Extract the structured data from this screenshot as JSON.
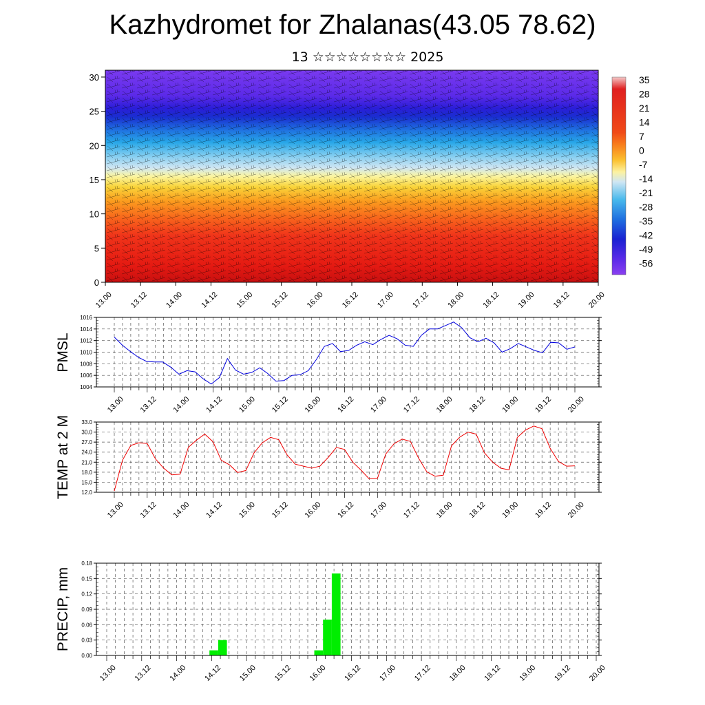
{
  "title": "Kazhydromet for Zhalanas(43.05 78.62)",
  "subtitle": "13 ☆☆☆☆☆☆☆☆ 2025",
  "colors": {
    "pmsl": "#0000dd",
    "temp": "#ee0000",
    "precip": "#00ee00",
    "grid": "#555555"
  },
  "chart_data": [
    {
      "type": "heatmap",
      "title": "",
      "x_ticks": [
        "13.00",
        "13.12",
        "14.00",
        "14.12",
        "15.00",
        "15.12",
        "16.00",
        "16.12",
        "17.00",
        "17.12",
        "18.00",
        "18.12",
        "19.00",
        "19.12",
        "20.00"
      ],
      "y_ticks": [
        "0",
        "5",
        "10",
        "15",
        "20",
        "25",
        "30"
      ],
      "ylim": [
        0,
        31
      ],
      "colorbar_labels": [
        "35",
        "28",
        "21",
        "14",
        "7",
        "0",
        "-7",
        "-14",
        "-21",
        "-28",
        "-35",
        "-42",
        "-49",
        "-56"
      ],
      "overlay": "wind barbs"
    },
    {
      "type": "line",
      "ylabel": "PMSL",
      "x_ticks": [
        "13.00",
        "13.12",
        "14.00",
        "14.12",
        "15.00",
        "15.12",
        "16.00",
        "16.12",
        "17.00",
        "17.12",
        "18.00",
        "18.12",
        "19.00",
        "19.12",
        "20.00"
      ],
      "y_ticks": [
        "1016",
        "1014",
        "1012",
        "1010",
        "1008",
        "1006",
        "1004"
      ],
      "ylim": [
        1004,
        1016
      ],
      "values": [
        1012.6,
        1011.2,
        1010.1,
        1009.1,
        1008.4,
        1008.3,
        1008.3,
        1007.4,
        1006.2,
        1006.8,
        1006.6,
        1005.4,
        1004.5,
        1005.6,
        1008.9,
        1006.9,
        1006.2,
        1006.5,
        1007.3,
        1006.3,
        1005.0,
        1005.1,
        1006.0,
        1006.1,
        1006.8,
        1008.7,
        1011.0,
        1011.5,
        1010.1,
        1010.3,
        1011.2,
        1011.8,
        1011.3,
        1012.2,
        1012.9,
        1012.3,
        1011.2,
        1011.0,
        1012.9,
        1014.0,
        1014.0,
        1014.6,
        1015.2,
        1014.2,
        1012.5,
        1011.8,
        1012.4,
        1011.6,
        1010.0,
        1010.6,
        1011.5,
        1010.9,
        1010.3,
        1009.9,
        1011.7,
        1011.6,
        1010.5,
        1010.9
      ]
    },
    {
      "type": "line",
      "ylabel": "TEMP at 2 M",
      "x_ticks": [
        "13.00",
        "13.12",
        "14.00",
        "14.12",
        "15.00",
        "15.12",
        "16.00",
        "16.12",
        "17.00",
        "17.12",
        "18.00",
        "18.12",
        "19.00",
        "19.12",
        "20.00"
      ],
      "y_ticks": [
        "33.0",
        "30.0",
        "27.0",
        "24.0",
        "21.0",
        "18.0",
        "15.0",
        "12.0"
      ],
      "ylim": [
        12,
        33
      ],
      "values": [
        12.4,
        21.6,
        26.0,
        26.8,
        26.6,
        22.0,
        19.2,
        17.2,
        17.4,
        25.4,
        27.6,
        29.4,
        27.1,
        21.6,
        20.2,
        17.9,
        18.5,
        23.8,
        26.8,
        28.4,
        27.7,
        23.2,
        20.4,
        19.8,
        19.2,
        19.8,
        22.4,
        25.4,
        24.8,
        21.0,
        18.6,
        16.0,
        16.2,
        23.4,
        26.5,
        27.9,
        27.2,
        22.2,
        18.1,
        16.8,
        17.1,
        25.9,
        28.5,
        30.0,
        29.4,
        23.8,
        21.0,
        19.2,
        18.7,
        28.4,
        30.6,
        31.8,
        31.0,
        25.1,
        21.2,
        19.8,
        19.9
      ]
    },
    {
      "type": "bar",
      "ylabel": "PRECIP, mm",
      "x_ticks": [
        "13.00",
        "13.12",
        "14.00",
        "14.12",
        "15.00",
        "15.12",
        "16.00",
        "16.12",
        "17.00",
        "17.12",
        "18.00",
        "18.12",
        "19.00",
        "19.12",
        "20.00"
      ],
      "y_ticks": [
        "0.18",
        "0.15",
        "0.12",
        "0.09",
        "0.06",
        "0.03",
        "0.00"
      ],
      "ylim": [
        0,
        0.18
      ],
      "bars": [
        {
          "t": 12.25,
          "value": 0.01
        },
        {
          "t": 13.25,
          "value": 0.03
        },
        {
          "t": 24.25,
          "value": 0.01
        },
        {
          "t": 25.25,
          "value": 0.07
        },
        {
          "t": 26.25,
          "value": 0.16
        }
      ]
    }
  ]
}
